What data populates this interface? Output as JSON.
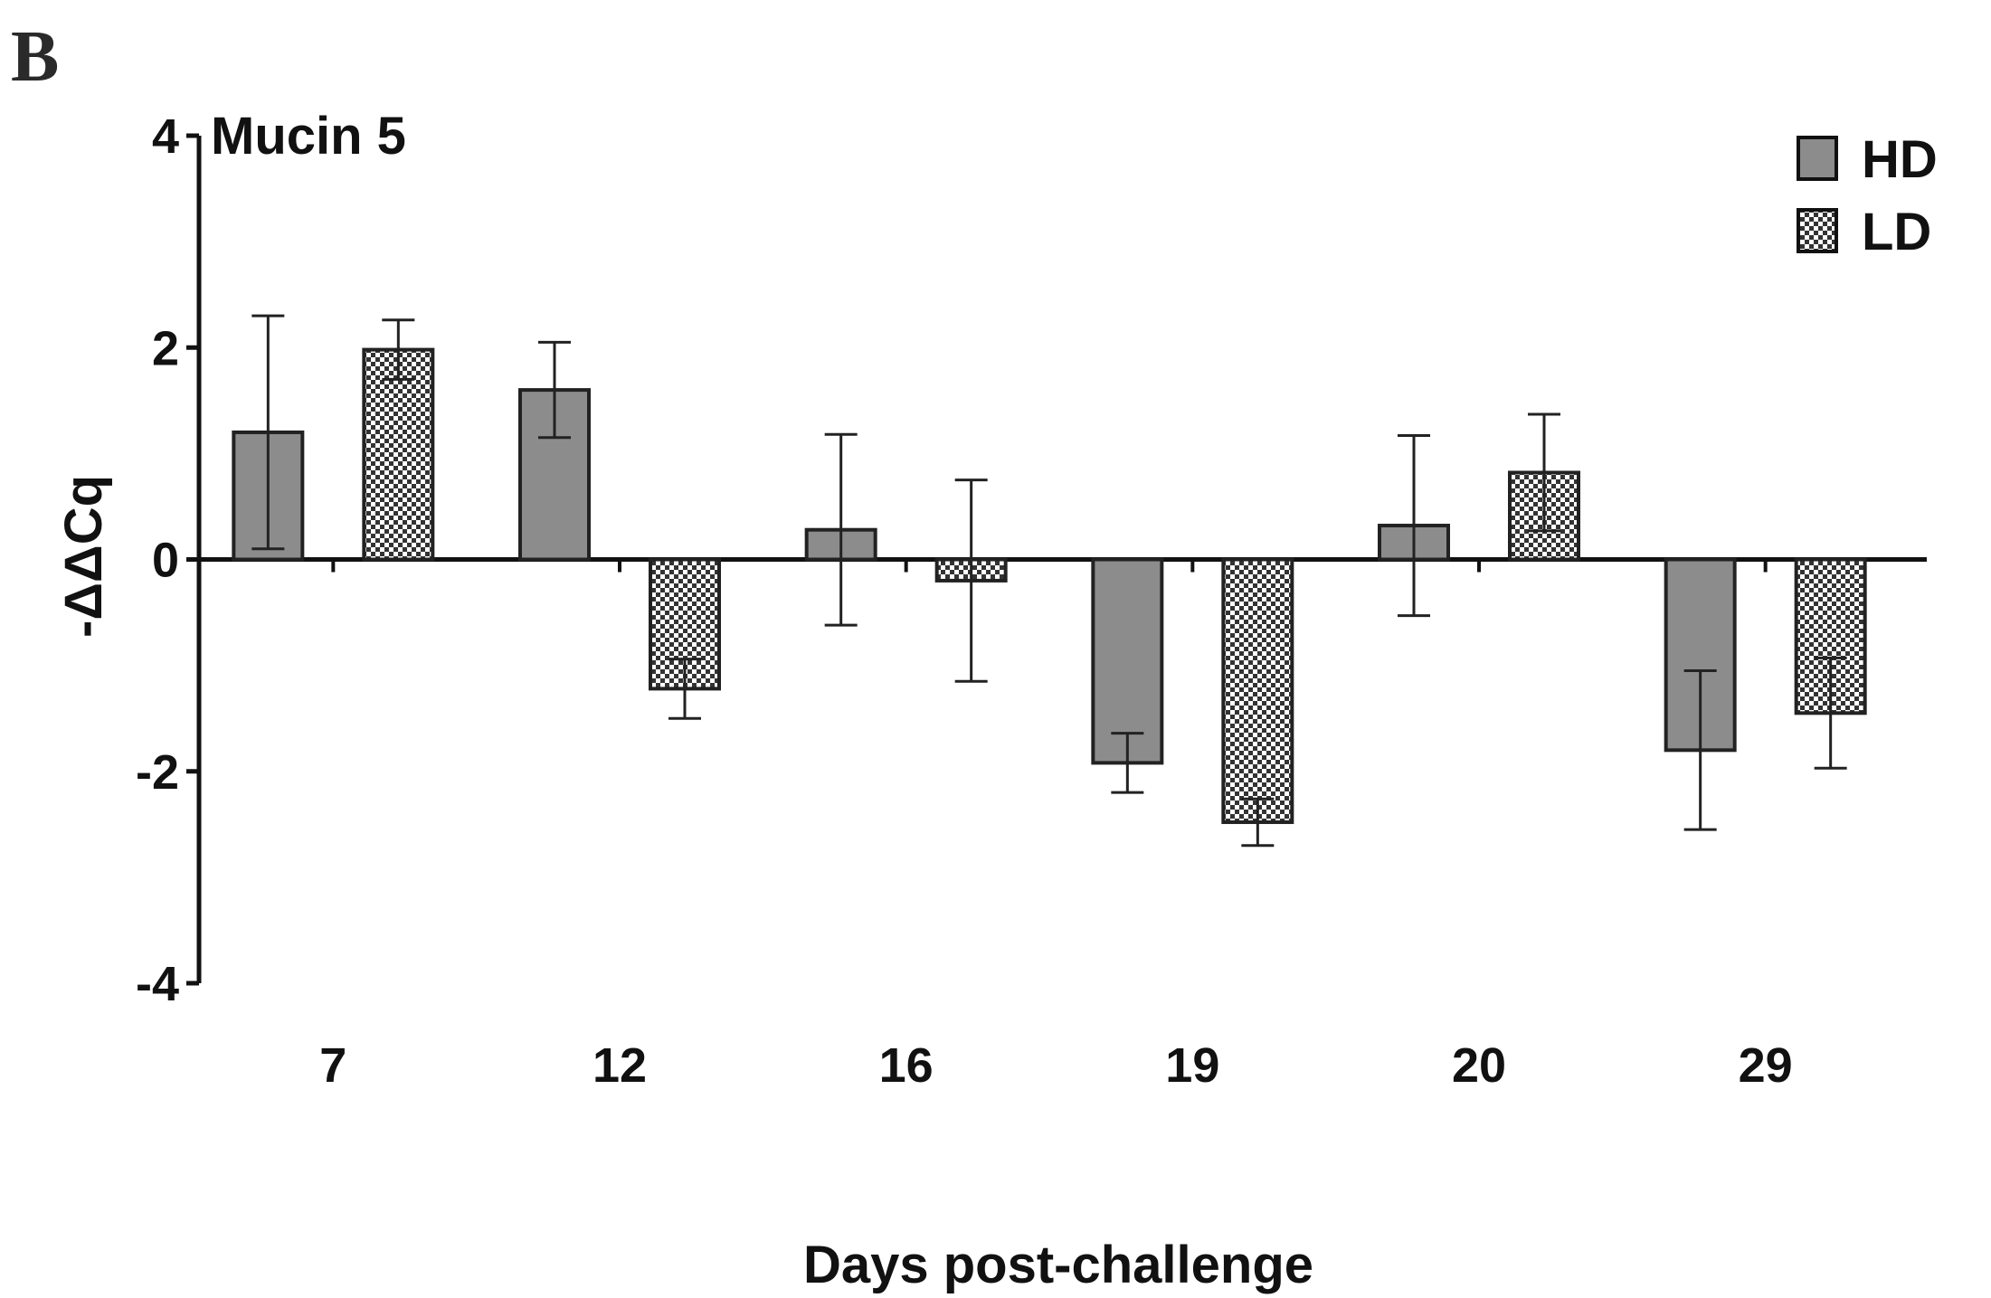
{
  "panel_label": "B",
  "chart_data": {
    "type": "bar",
    "title": "Mucin 5",
    "xlabel": "Days post-challenge",
    "ylabel": "-ΔΔCq",
    "ylim": [
      -4,
      4
    ],
    "yticks": [
      4,
      2,
      0,
      -2,
      -4
    ],
    "categories": [
      "7",
      "12",
      "16",
      "19",
      "20",
      "29"
    ],
    "series": [
      {
        "name": "HD",
        "values": [
          1.2,
          1.6,
          0.28,
          -1.92,
          0.32,
          -1.8
        ],
        "errors": [
          1.1,
          0.45,
          0.9,
          0.28,
          0.85,
          0.75
        ],
        "fill": "#8c8c8c"
      },
      {
        "name": "LD",
        "values": [
          1.98,
          -1.22,
          -0.2,
          -2.48,
          0.82,
          -1.45
        ],
        "errors": [
          0.28,
          0.28,
          0.95,
          0.22,
          0.55,
          0.52
        ],
        "fill": "checker"
      }
    ]
  },
  "legend": {
    "items": [
      "HD",
      "LD"
    ],
    "position": "top-right"
  }
}
